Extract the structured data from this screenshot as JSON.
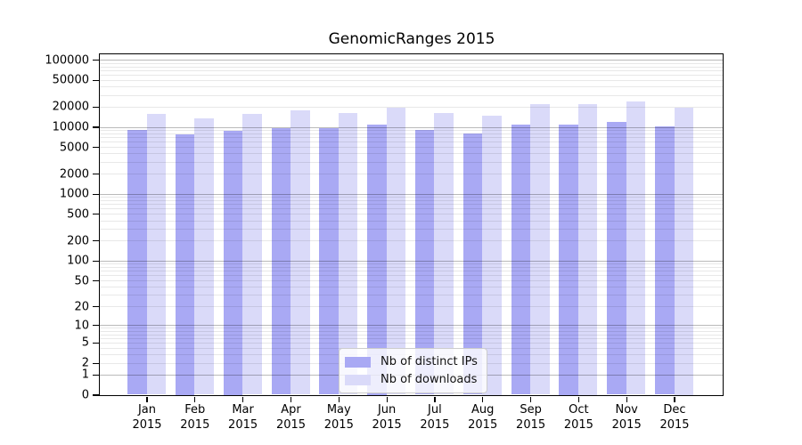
{
  "chart_data": {
    "type": "bar",
    "title": "GenomicRanges 2015",
    "categories": [
      "Jan 2015",
      "Feb 2015",
      "Mar 2015",
      "Apr 2015",
      "May 2015",
      "Jun 2015",
      "Jul 2015",
      "Aug 2015",
      "Sep 2015",
      "Oct 2015",
      "Nov 2015",
      "Dec 2015"
    ],
    "series": [
      {
        "name": "Nb of distinct IPs",
        "color": "#a9a9f4",
        "values": [
          8900,
          7700,
          8850,
          9600,
          9600,
          10950,
          8950,
          7900,
          10700,
          10950,
          11750,
          10200
        ]
      },
      {
        "name": "Nb of downloads",
        "color": "#dadaf9",
        "values": [
          15500,
          13300,
          15800,
          17500,
          16000,
          19200,
          16000,
          14650,
          21700,
          22150,
          24050,
          19600
        ]
      }
    ],
    "xlabel": "",
    "ylabel": "",
    "yscale": "log1p",
    "ylim": [
      0,
      123000
    ],
    "yticks": [
      100000,
      50000,
      20000,
      10000,
      5000,
      2000,
      1000,
      500,
      200,
      100,
      50,
      20,
      10,
      5,
      2,
      1,
      0
    ],
    "grid": "horizontal major and minor log gridlines drawn over bars",
    "legend_position": "lower center",
    "axis_color": "#000000"
  }
}
